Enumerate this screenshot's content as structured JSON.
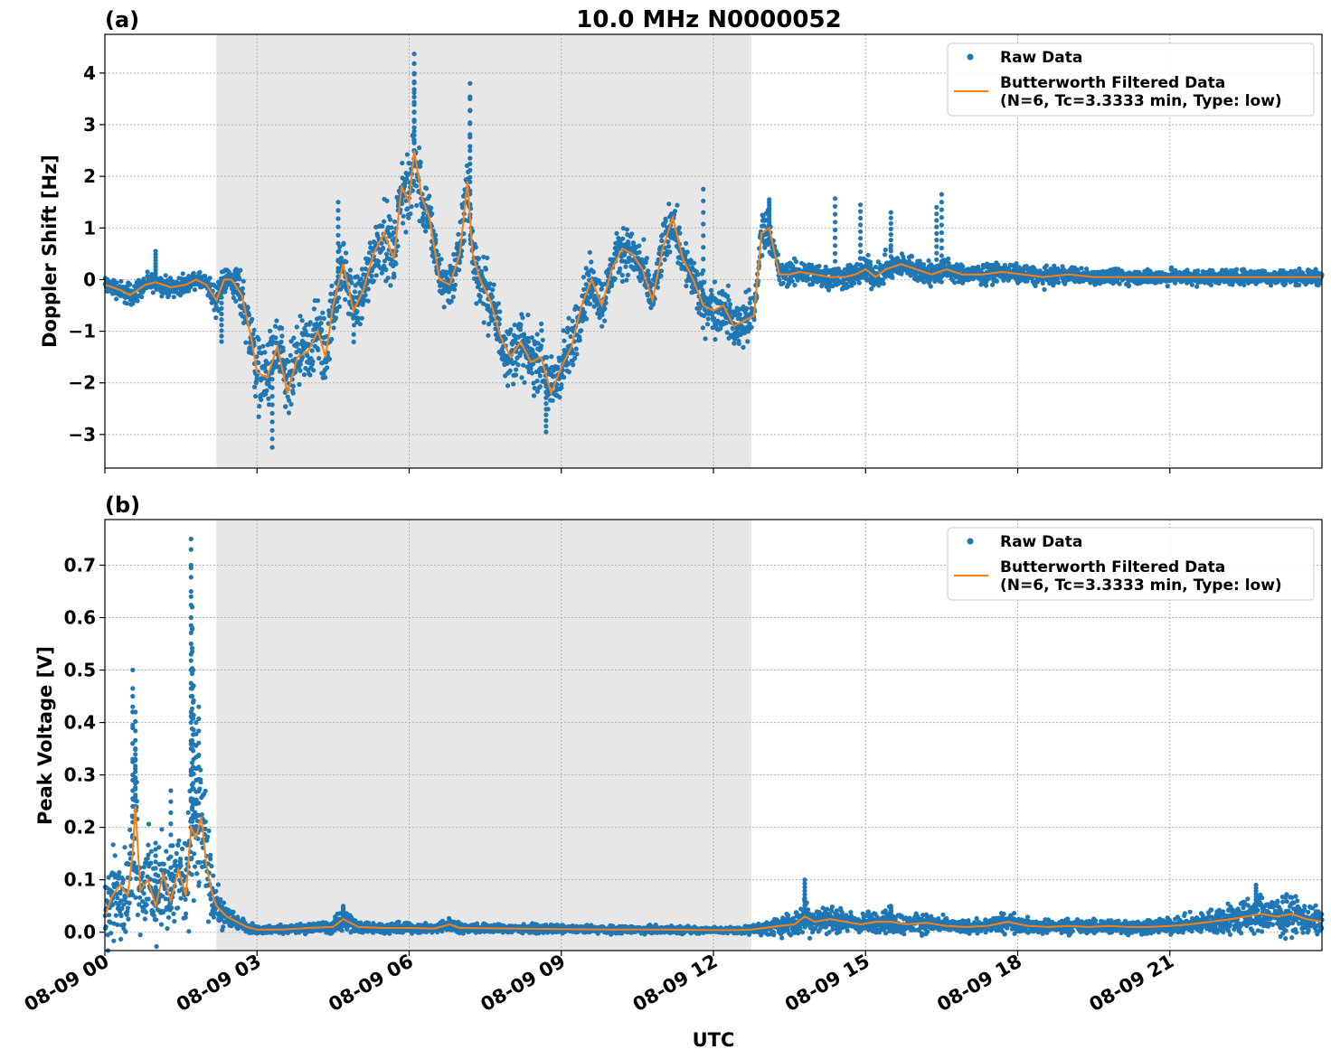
{
  "figure": {
    "title": "10.0 MHz N0000052",
    "xlabel": "UTC",
    "shaded_region": {
      "start_hour": 2.2,
      "end_hour": 12.75,
      "color": "#e7e7e7"
    },
    "x_ticks": [
      "08-09 00",
      "08-09 03",
      "08-09 06",
      "08-09 09",
      "08-09 12",
      "08-09 15",
      "08-09 18",
      "08-09 21"
    ],
    "x_tick_hours": [
      0,
      3,
      6,
      9,
      12,
      15,
      18,
      21
    ],
    "xlim_hours": [
      0,
      24
    ],
    "legend": {
      "raw_label": "Raw Data",
      "filtered_line1": "Butterworth Filtered Data",
      "filtered_line2": "(N=6, Tc=3.3333 min, Type: low)"
    },
    "colors": {
      "raw": "#1f77b4",
      "filtered": "#ff7f0e",
      "shade": "#e7e7e7",
      "grid": "#b0b0b0"
    }
  },
  "chart_data": [
    {
      "panel_label": "(a)",
      "type": "scatter",
      "ylabel": "Doppler Shift [Hz]",
      "ylim": [
        -3.65,
        4.75
      ],
      "y_ticks": [
        -3,
        -2,
        -1,
        0,
        1,
        2,
        3,
        4
      ],
      "y_tick_labels": [
        "−3",
        "−2",
        "−1",
        "0",
        "1",
        "2",
        "3",
        "4"
      ],
      "legend_position": "top-right",
      "grid": true,
      "series": [
        {
          "name": "Butterworth Filtered Data",
          "x_hours": [
            0,
            0.3,
            0.5,
            0.8,
            1.0,
            1.3,
            1.6,
            1.8,
            2.0,
            2.2,
            2.35,
            2.5,
            2.7,
            2.9,
            3.0,
            3.2,
            3.4,
            3.6,
            3.8,
            4.0,
            4.2,
            4.35,
            4.5,
            4.7,
            4.9,
            5.1,
            5.3,
            5.5,
            5.7,
            5.85,
            6.0,
            6.1,
            6.25,
            6.4,
            6.6,
            6.8,
            7.0,
            7.15,
            7.25,
            7.4,
            7.6,
            7.8,
            8.0,
            8.2,
            8.4,
            8.6,
            8.8,
            9.0,
            9.2,
            9.4,
            9.6,
            9.8,
            10.0,
            10.2,
            10.4,
            10.6,
            10.8,
            11.0,
            11.2,
            11.4,
            11.6,
            11.8,
            12.0,
            12.2,
            12.4,
            12.6,
            12.8,
            12.95,
            13.1,
            13.3,
            13.5,
            13.7,
            14.0,
            14.3,
            14.6,
            14.8,
            15.0,
            15.2,
            15.4,
            15.7,
            16.0,
            16.3,
            16.6,
            16.9,
            17.3,
            17.7,
            18.1,
            18.5,
            19.0,
            19.5,
            20.0,
            20.5,
            21.0,
            21.5,
            22.0,
            22.5,
            23.0,
            23.5,
            24.0
          ],
          "y": [
            -0.1,
            -0.2,
            -0.3,
            -0.1,
            -0.05,
            -0.15,
            -0.1,
            0.0,
            -0.1,
            -0.4,
            0.0,
            0.0,
            -0.3,
            -1.2,
            -1.8,
            -1.9,
            -1.3,
            -2.2,
            -1.5,
            -1.4,
            -1.0,
            -1.5,
            -0.5,
            0.3,
            -0.6,
            -0.2,
            0.5,
            0.9,
            0.4,
            1.8,
            1.5,
            2.5,
            1.6,
            1.2,
            0.0,
            -0.1,
            0.5,
            1.9,
            0.5,
            0.0,
            -0.4,
            -1.1,
            -1.5,
            -1.2,
            -1.6,
            -1.5,
            -2.2,
            -1.7,
            -1.3,
            -0.5,
            0.0,
            -0.5,
            0.2,
            0.6,
            0.5,
            0.2,
            -0.4,
            0.6,
            1.2,
            0.4,
            0.0,
            -0.5,
            -0.6,
            -0.5,
            -0.9,
            -0.8,
            -0.7,
            0.9,
            1.0,
            0.1,
            0.1,
            0.15,
            0.1,
            0.05,
            0.05,
            0.1,
            0.2,
            0.05,
            0.2,
            0.3,
            0.2,
            0.1,
            0.2,
            0.1,
            0.1,
            0.15,
            0.1,
            0.05,
            0.1,
            0.05,
            0.05,
            0.05,
            0.05,
            0.05,
            0.05,
            0.05,
            0.05,
            0.05,
            0.05
          ]
        },
        {
          "name": "Raw Data",
          "spread": [
            0.15,
            0.15,
            0.2,
            0.15,
            0.15,
            0.15,
            0.15,
            0.12,
            0.15,
            0.3,
            0.2,
            0.25,
            0.4,
            0.6,
            0.6,
            0.6,
            0.6,
            0.6,
            0.5,
            0.6,
            0.6,
            0.6,
            0.5,
            0.5,
            0.5,
            0.5,
            0.5,
            0.6,
            0.5,
            0.6,
            0.6,
            0.7,
            0.6,
            0.5,
            0.4,
            0.4,
            0.5,
            0.5,
            0.5,
            0.5,
            0.5,
            0.5,
            0.5,
            0.5,
            0.5,
            0.5,
            0.6,
            0.5,
            0.5,
            0.5,
            0.4,
            0.4,
            0.4,
            0.4,
            0.4,
            0.4,
            0.4,
            0.4,
            0.4,
            0.4,
            0.4,
            0.4,
            0.4,
            0.4,
            0.4,
            0.4,
            0.4,
            0.4,
            0.3,
            0.2,
            0.2,
            0.2,
            0.2,
            0.2,
            0.2,
            0.2,
            0.25,
            0.2,
            0.25,
            0.2,
            0.2,
            0.2,
            0.2,
            0.15,
            0.15,
            0.15,
            0.15,
            0.15,
            0.12,
            0.12,
            0.12,
            0.12,
            0.12,
            0.12,
            0.12,
            0.12,
            0.12,
            0.12,
            0.12
          ],
          "spikes": [
            [
              1.0,
              0.55
            ],
            [
              2.3,
              -1.2
            ],
            [
              3.3,
              -3.25
            ],
            [
              4.6,
              1.5
            ],
            [
              6.1,
              4.37
            ],
            [
              6.1,
              3.98
            ],
            [
              7.2,
              3.8
            ],
            [
              7.2,
              3.5
            ],
            [
              8.7,
              -2.95
            ],
            [
              11.8,
              1.75
            ],
            [
              13.1,
              1.55
            ],
            [
              14.4,
              1.57
            ],
            [
              14.9,
              1.45
            ],
            [
              15.5,
              1.3
            ],
            [
              16.4,
              1.4
            ],
            [
              16.5,
              1.65
            ]
          ]
        }
      ]
    },
    {
      "panel_label": "(b)",
      "type": "scatter",
      "ylabel": "Peak Voltage [V]",
      "ylim": [
        -0.035,
        0.787
      ],
      "y_ticks": [
        0.0,
        0.1,
        0.2,
        0.3,
        0.4,
        0.5,
        0.6,
        0.7
      ],
      "y_tick_labels": [
        "0.0",
        "0.1",
        "0.2",
        "0.3",
        "0.4",
        "0.5",
        "0.6",
        "0.7"
      ],
      "legend_position": "top-right",
      "grid": true,
      "series": [
        {
          "name": "Butterworth Filtered Data",
          "x_hours": [
            0,
            0.15,
            0.3,
            0.45,
            0.55,
            0.6,
            0.7,
            0.85,
            1.0,
            1.15,
            1.3,
            1.45,
            1.6,
            1.7,
            1.8,
            1.9,
            2.0,
            2.1,
            2.2,
            2.4,
            2.6,
            2.8,
            3.0,
            3.5,
            4.0,
            4.5,
            4.7,
            5.0,
            5.5,
            6.0,
            6.5,
            6.8,
            7.0,
            8.0,
            9.0,
            10.0,
            11.0,
            12.0,
            12.5,
            12.75,
            13.0,
            13.3,
            13.6,
            13.8,
            14.0,
            14.3,
            14.6,
            14.9,
            15.2,
            15.5,
            15.8,
            16.2,
            16.6,
            17.0,
            17.4,
            17.8,
            18.2,
            18.6,
            19.0,
            19.4,
            19.8,
            20.2,
            20.6,
            21.0,
            21.4,
            21.8,
            22.2,
            22.5,
            22.8,
            23.1,
            23.4,
            23.7,
            24.0
          ],
          "y": [
            0.03,
            0.07,
            0.09,
            0.07,
            0.15,
            0.24,
            0.08,
            0.1,
            0.05,
            0.11,
            0.06,
            0.12,
            0.07,
            0.2,
            0.18,
            0.22,
            0.13,
            0.08,
            0.05,
            0.03,
            0.02,
            0.01,
            0.005,
            0.005,
            0.008,
            0.01,
            0.025,
            0.01,
            0.008,
            0.008,
            0.007,
            0.015,
            0.008,
            0.007,
            0.006,
            0.005,
            0.005,
            0.004,
            0.004,
            0.005,
            0.008,
            0.012,
            0.015,
            0.03,
            0.02,
            0.025,
            0.02,
            0.015,
            0.02,
            0.02,
            0.015,
            0.018,
            0.012,
            0.01,
            0.012,
            0.02,
            0.012,
            0.01,
            0.012,
            0.01,
            0.012,
            0.01,
            0.01,
            0.012,
            0.015,
            0.02,
            0.025,
            0.03,
            0.035,
            0.03,
            0.035,
            0.025,
            0.02
          ],
          "spread": [
            0.06,
            0.07,
            0.07,
            0.06,
            0.1,
            0.15,
            0.07,
            0.08,
            0.06,
            0.08,
            0.06,
            0.08,
            0.07,
            0.1,
            0.12,
            0.12,
            0.09,
            0.05,
            0.03,
            0.02,
            0.012,
            0.008,
            0.006,
            0.006,
            0.008,
            0.01,
            0.018,
            0.01,
            0.008,
            0.008,
            0.007,
            0.01,
            0.008,
            0.007,
            0.006,
            0.006,
            0.006,
            0.005,
            0.005,
            0.007,
            0.01,
            0.015,
            0.02,
            0.03,
            0.02,
            0.02,
            0.018,
            0.015,
            0.018,
            0.02,
            0.015,
            0.015,
            0.012,
            0.01,
            0.012,
            0.015,
            0.012,
            0.01,
            0.012,
            0.01,
            0.012,
            0.012,
            0.012,
            0.012,
            0.015,
            0.02,
            0.025,
            0.03,
            0.03,
            0.03,
            0.03,
            0.025,
            0.02
          ]
        },
        {
          "name": "Raw Data",
          "spikes": [
            [
              0.55,
              0.5
            ],
            [
              0.55,
              0.45
            ],
            [
              0.6,
              0.42
            ],
            [
              0.6,
              0.35
            ],
            [
              1.7,
              0.75
            ],
            [
              1.7,
              0.73
            ],
            [
              1.7,
              0.7
            ],
            [
              1.72,
              0.62
            ],
            [
              1.72,
              0.58
            ],
            [
              1.74,
              0.5
            ],
            [
              1.75,
              0.47
            ],
            [
              1.8,
              0.4
            ],
            [
              1.85,
              0.43
            ],
            [
              1.3,
              0.27
            ],
            [
              1.0,
              0.17
            ],
            [
              13.8,
              0.1
            ],
            [
              4.7,
              0.05
            ],
            [
              15.5,
              0.05
            ],
            [
              22.7,
              0.09
            ]
          ]
        }
      ]
    }
  ]
}
